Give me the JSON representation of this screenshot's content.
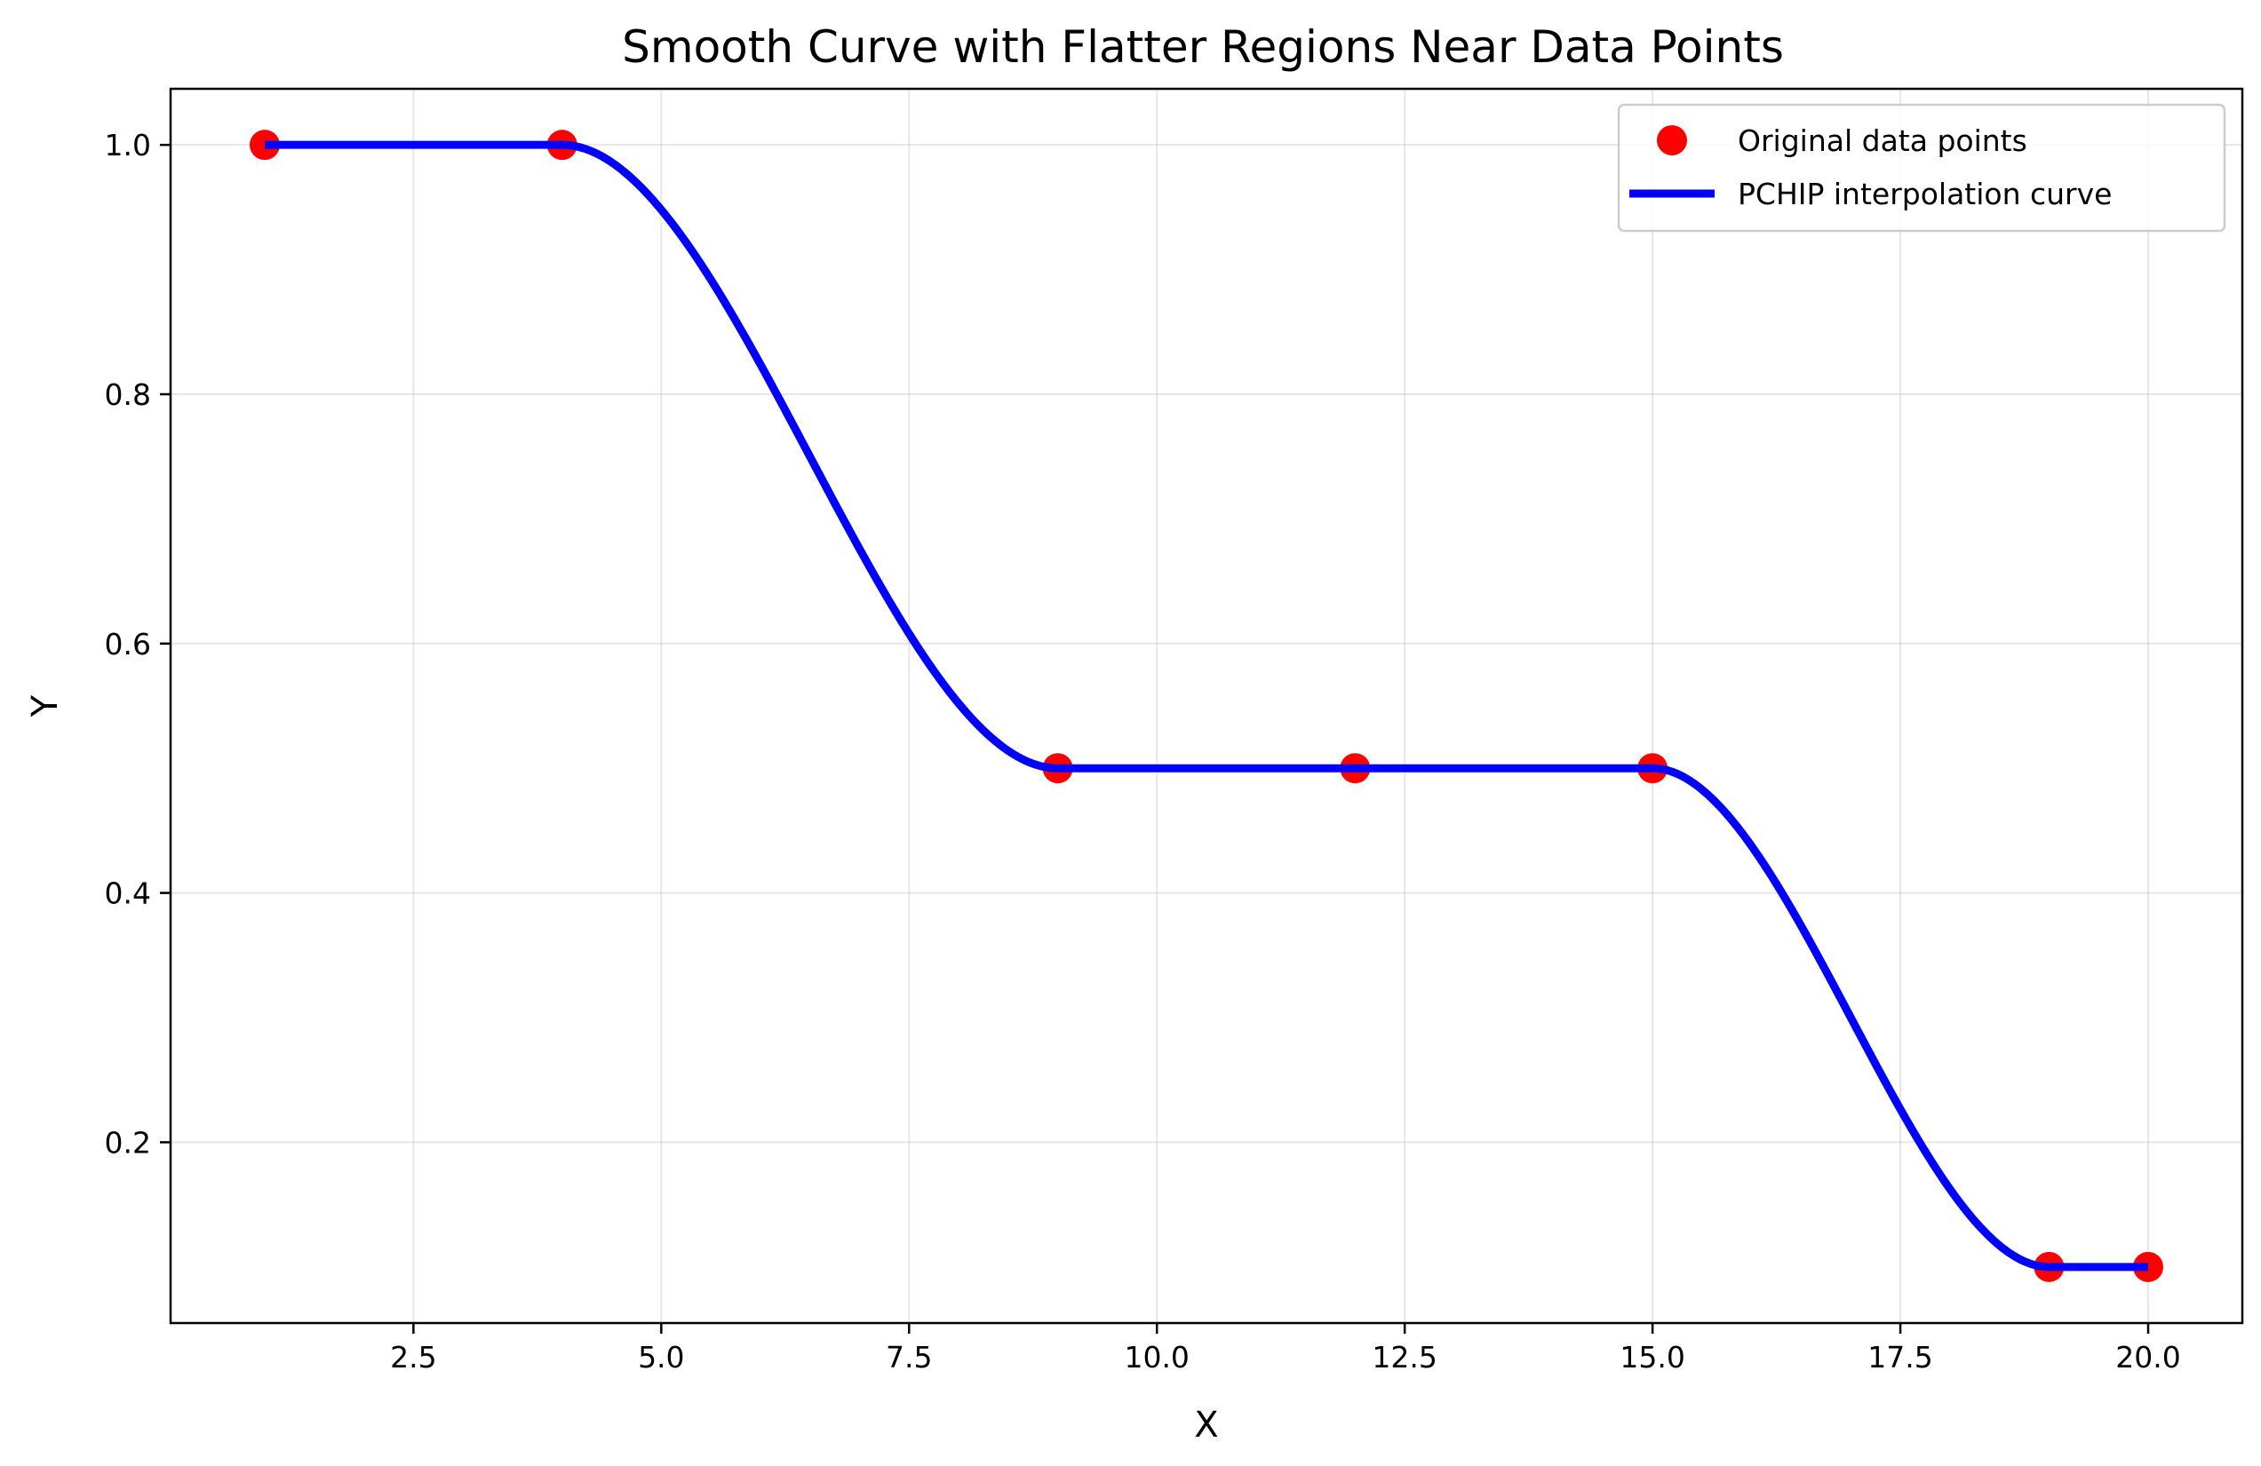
{
  "chart_data": {
    "type": "line",
    "title": "Smooth Curve with Flatter Regions Near Data Points",
    "xlabel": "X",
    "ylabel": "Y",
    "xlim": [
      0.05,
      20.95
    ],
    "ylim": [
      0.055,
      1.045
    ],
    "x_ticks": [
      2.5,
      5.0,
      7.5,
      10.0,
      12.5,
      15.0,
      17.5,
      20.0
    ],
    "x_tick_labels": [
      "2.5",
      "5.0",
      "7.5",
      "10.0",
      "12.5",
      "15.0",
      "17.5",
      "20.0"
    ],
    "y_ticks": [
      0.2,
      0.4,
      0.6,
      0.8,
      1.0
    ],
    "y_tick_labels": [
      "0.2",
      "0.4",
      "0.6",
      "0.8",
      "1.0"
    ],
    "grid": true,
    "legend_position": "top-right",
    "series": [
      {
        "name": "Original data points",
        "kind": "scatter",
        "color": "#ff0000",
        "x": [
          1,
          4,
          9,
          12,
          15,
          19,
          20
        ],
        "y": [
          1.0,
          1.0,
          0.5,
          0.5,
          0.5,
          0.1,
          0.1
        ]
      },
      {
        "name": "PCHIP interpolation curve",
        "kind": "line",
        "color": "#0000ff",
        "interpolation": "pchip",
        "x": [
          1,
          4,
          9,
          12,
          15,
          19,
          20
        ],
        "y": [
          1.0,
          1.0,
          0.5,
          0.5,
          0.5,
          0.1,
          0.1
        ]
      }
    ]
  }
}
